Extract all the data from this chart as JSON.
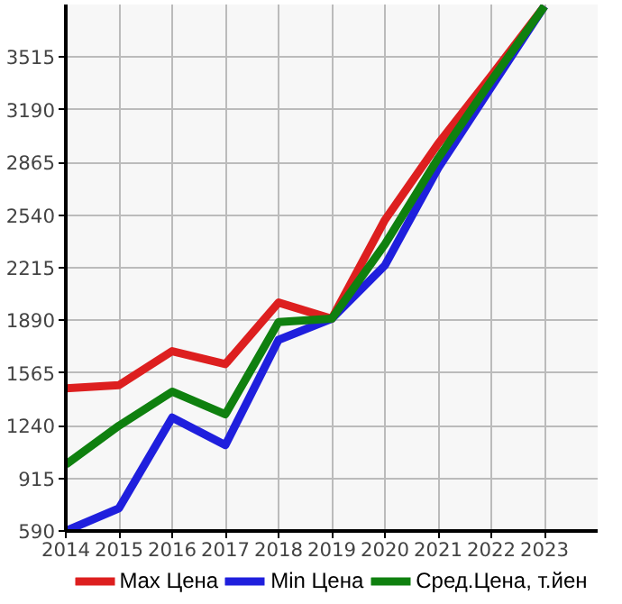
{
  "chart_data": {
    "type": "line",
    "x": [
      2014,
      2015,
      2016,
      2017,
      2018,
      2019,
      2020,
      2021,
      2022,
      2023
    ],
    "series": [
      {
        "name": "Max Цена",
        "color": "#dd1f1f",
        "values": [
          1470,
          1490,
          1700,
          1620,
          2000,
          1900,
          2510,
          2980,
          3400,
          3830
        ]
      },
      {
        "name": "Min Цена",
        "color": "#1f1fdd",
        "values": [
          590,
          730,
          1290,
          1120,
          1770,
          1900,
          2230,
          2830,
          3330,
          3830
        ]
      },
      {
        "name": "Сред.Цена, т.йен",
        "color": "#0f800f",
        "values": [
          1000,
          1240,
          1450,
          1310,
          1880,
          1900,
          2360,
          2890,
          3370,
          3830
        ]
      }
    ],
    "xlim": [
      2014,
      2024
    ],
    "ylim": [
      590,
      3840
    ],
    "xticks": [
      2014,
      2015,
      2016,
      2017,
      2018,
      2019,
      2020,
      2021,
      2022,
      2023
    ],
    "yticks": [
      590,
      915,
      1240,
      1565,
      1890,
      2215,
      2540,
      2865,
      3190,
      3515
    ],
    "grid": true,
    "legend": "bottom",
    "marker": "none",
    "line_style": "solid"
  }
}
